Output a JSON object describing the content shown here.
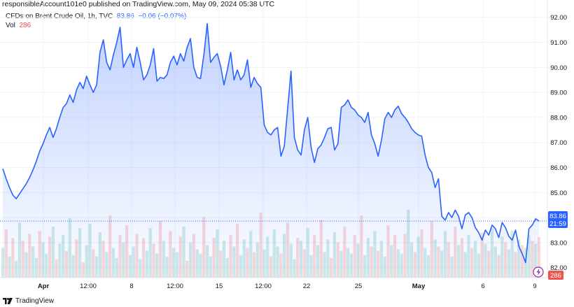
{
  "header": {
    "published": "responsibleAccount101e0 published on TradingView.com, May 09, 2024 05:38 UTC"
  },
  "legend": {
    "symbol": "CFDs on Brent Crude Oil, 1h, TVC",
    "last": "83.86",
    "change": "−0.06 (−0.07%)",
    "vol_label": "Vol",
    "vol_value": "286"
  },
  "price_tag": {
    "price": "83.86",
    "countdown": "21:59"
  },
  "vol_tag": "286",
  "footer": {
    "brand": "TradingView"
  },
  "colors": {
    "line": "#2962ff",
    "area_top": "#2962ff",
    "vol_up": "#26a69a",
    "vol_down": "#ef5350",
    "grid": "#f0f3fa",
    "axis_text": "#131722",
    "price_tag_bg": "#2962ff",
    "vol_tag_bg": "#ef5350"
  },
  "chart_data": {
    "type": "area",
    "title": "CFDs on Brent Crude Oil, 1h, TVC",
    "ylim": [
      81.6,
      92.3
    ],
    "y_ticks": [
      82.0,
      83.0,
      84.0,
      85.0,
      86.0,
      87.0,
      88.0,
      89.0,
      90.0,
      91.0,
      92.0
    ],
    "y_tick_labels": [
      "82.00",
      "83.00",
      "84.00",
      "85.00",
      "86.00",
      "87.00",
      "88.00",
      "89.00",
      "90.00",
      "91.00",
      "92.00"
    ],
    "x_ticks": [
      {
        "i": 0,
        "label": "Apr",
        "bold": true
      },
      {
        "i": 1,
        "label": "12:00"
      },
      {
        "i": 2,
        "label": "8"
      },
      {
        "i": 3,
        "label": "12:00"
      },
      {
        "i": 4,
        "label": "15"
      },
      {
        "i": 5,
        "label": "12:00"
      },
      {
        "i": 6,
        "label": "22"
      },
      {
        "i": 7,
        "label": "25"
      },
      {
        "i": 8,
        "label": "May",
        "bold": true
      },
      {
        "i": 9,
        "label": "6"
      },
      {
        "i": 10,
        "label": "9"
      }
    ],
    "grid": true,
    "series": [
      {
        "name": "CFDs on Brent Crude Oil",
        "values": [
          85.95,
          85.55,
          85.2,
          84.9,
          84.75,
          84.95,
          85.15,
          85.35,
          85.6,
          85.9,
          86.25,
          86.65,
          86.95,
          87.3,
          87.6,
          87.2,
          87.55,
          88.0,
          88.4,
          88.55,
          88.9,
          88.6,
          89.1,
          89.4,
          89.15,
          89.65,
          89.3,
          89.0,
          89.3,
          90.6,
          91.1,
          90.2,
          89.9,
          90.5,
          91.0,
          91.6,
          90.0,
          90.3,
          90.55,
          90.0,
          90.8,
          90.2,
          89.5,
          89.7,
          90.1,
          90.75,
          89.45,
          89.6,
          89.55,
          89.7,
          90.2,
          90.45,
          90.1,
          90.55,
          90.25,
          90.8,
          91.15,
          90.0,
          89.6,
          89.55,
          90.5,
          91.75,
          90.2,
          90.4,
          90.55,
          90.05,
          89.3,
          89.9,
          90.6,
          89.5,
          89.9,
          89.5,
          89.7,
          90.3,
          89.2,
          89.6,
          89.35,
          89.2,
          87.7,
          87.4,
          87.3,
          87.5,
          87.6,
          86.45,
          86.85,
          88.35,
          89.85,
          87.2,
          86.7,
          86.5,
          87.5,
          88.0,
          86.8,
          86.2,
          86.75,
          86.9,
          87.2,
          87.55,
          87.6,
          86.7,
          86.95,
          88.4,
          88.5,
          88.7,
          88.4,
          88.3,
          88.1,
          88.0,
          87.8,
          88.2,
          87.3,
          86.95,
          86.45,
          87.1,
          87.95,
          88.2,
          88.0,
          88.3,
          88.45,
          88.15,
          88.0,
          87.8,
          87.55,
          87.4,
          87.3,
          87.25,
          86.5,
          86.0,
          85.8,
          85.2,
          85.55,
          84.05,
          83.9,
          84.2,
          84.0,
          84.3,
          84.05,
          83.55,
          84.1,
          84.2,
          84.0,
          83.6,
          83.4,
          83.1,
          83.5,
          83.3,
          83.7,
          83.55,
          83.2,
          83.8,
          83.6,
          83.25,
          83.1,
          83.5,
          82.85,
          82.55,
          82.2,
          83.55,
          83.7,
          83.95,
          83.86
        ]
      }
    ],
    "volume_series": {
      "name": "Vol",
      "last": 286,
      "values": [
        210,
        340,
        150,
        280,
        120,
        390,
        260,
        180,
        310,
        220,
        140,
        330,
        250,
        170,
        290,
        360,
        130,
        240,
        300,
        190,
        420,
        160,
        270,
        350,
        110,
        230,
        380,
        200,
        150,
        320,
        260,
        180,
        440,
        210,
        140,
        300,
        250,
        370,
        160,
        220,
        310,
        130,
        280,
        190,
        350,
        240,
        170,
        400,
        260,
        150,
        330,
        210,
        180,
        290,
        360,
        120,
        250,
        310,
        200,
        170,
        430,
        230,
        150,
        280,
        340,
        190,
        260,
        140,
        300,
        220,
        380,
        160,
        270,
        210,
        330,
        180,
        250,
        460,
        200,
        290,
        150,
        340,
        220,
        170,
        310,
        390,
        240,
        130,
        280,
        260,
        200,
        350,
        160,
        300,
        230,
        410,
        180,
        270,
        140,
        320,
        250,
        190,
        360,
        210,
        170,
        300,
        240,
        440,
        160,
        280,
        220,
        330,
        190,
        260,
        150,
        370,
        230,
        300,
        200,
        170,
        310,
        480,
        250,
        180,
        290,
        340,
        210,
        160,
        400,
        270,
        220,
        190,
        330,
        250,
        150,
        360,
        230,
        280,
        180,
        300,
        210,
        260,
        170,
        320,
        240,
        190,
        350,
        220,
        160,
        290,
        250,
        200,
        330,
        180,
        270,
        230,
        210,
        300,
        260,
        240,
        286
      ],
      "up": [
        1,
        0,
        1,
        0,
        1,
        1,
        0,
        1,
        0,
        1,
        1,
        0,
        1,
        1,
        0,
        1,
        0,
        1,
        1,
        0,
        1,
        1,
        0,
        1,
        0,
        1,
        1,
        0,
        1,
        1,
        0,
        1,
        0,
        1,
        1,
        0,
        1,
        0,
        1,
        1,
        0,
        1,
        0,
        1,
        1,
        0,
        1,
        0,
        1,
        1,
        0,
        1,
        1,
        0,
        1,
        0,
        1,
        0,
        1,
        1,
        0,
        1,
        1,
        0,
        1,
        0,
        1,
        1,
        0,
        1,
        0,
        1,
        1,
        0,
        1,
        0,
        1,
        0,
        1,
        1,
        0,
        1,
        1,
        0,
        1,
        0,
        1,
        1,
        0,
        1,
        0,
        1,
        1,
        0,
        1,
        0,
        1,
        1,
        0,
        1,
        0,
        1,
        0,
        1,
        1,
        0,
        1,
        0,
        1,
        1,
        0,
        1,
        0,
        1,
        1,
        0,
        1,
        0,
        1,
        1,
        0,
        1,
        1,
        0,
        1,
        0,
        1,
        1,
        0,
        1,
        0,
        1,
        1,
        0,
        1,
        0,
        1,
        0,
        1,
        1,
        0,
        1,
        1,
        0,
        1,
        0,
        1,
        1,
        0,
        1,
        0,
        1,
        1,
        0,
        1,
        0,
        1,
        1,
        0,
        1,
        0
      ]
    }
  }
}
